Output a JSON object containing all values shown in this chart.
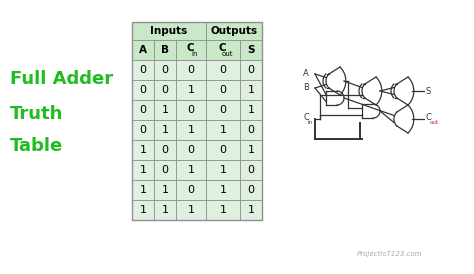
{
  "bg_color": "#ffffff",
  "title_lines": [
    "Full Adder",
    "Truth",
    "Table"
  ],
  "title_color": "#22bb22",
  "title_fontsize": 13,
  "table_header_inputs": "Inputs",
  "table_header_outputs": "Outputs",
  "rows": [
    [
      0,
      0,
      0,
      0,
      0
    ],
    [
      0,
      0,
      1,
      0,
      1
    ],
    [
      0,
      1,
      0,
      0,
      1
    ],
    [
      0,
      1,
      1,
      1,
      0
    ],
    [
      1,
      0,
      0,
      0,
      1
    ],
    [
      1,
      0,
      1,
      1,
      0
    ],
    [
      1,
      1,
      0,
      1,
      0
    ],
    [
      1,
      1,
      1,
      1,
      1
    ]
  ],
  "header_bg": "#c8e8c8",
  "row_bg": "#e0f0e0",
  "border_color": "#909090",
  "watermark": "ProjectIoT123.com",
  "circuit_color": "#333333",
  "output_label_color": "#cc2222"
}
